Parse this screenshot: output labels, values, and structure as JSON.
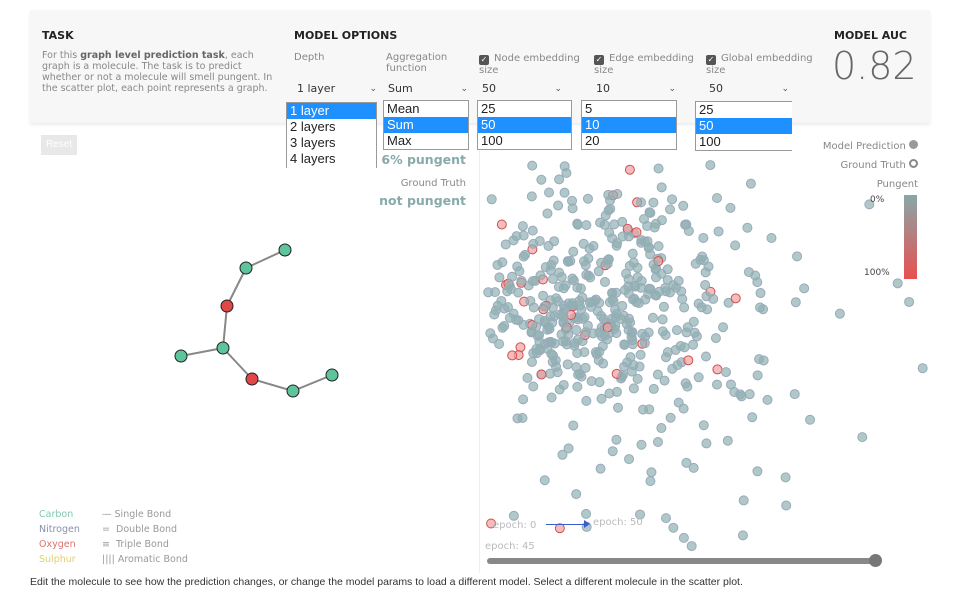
{
  "task": {
    "title": "TASK",
    "text_pre": "For this ",
    "text_bold": "graph level prediction task",
    "text_post": ", each graph is a molecule. The task is to predict whether or not a molecule will smell pungent. In the scatter plot, each point represents a graph."
  },
  "model_options": {
    "title": "MODEL OPTIONS",
    "depth": {
      "label": "Depth",
      "value": "1 layer",
      "options": [
        "1 layer",
        "2 layers",
        "3 layers",
        "4 layers"
      ]
    },
    "aggregation": {
      "label": "Aggregation function",
      "value": "Sum",
      "options": [
        "Mean",
        "Sum",
        "Max"
      ]
    },
    "node_embedding": {
      "label": "Node embedding",
      "label2": "size",
      "checked": true,
      "value": "50",
      "options": [
        "25",
        "50",
        "100"
      ]
    },
    "edge_embedding": {
      "label": "Edge embedding",
      "label2": "size",
      "checked": true,
      "value": "10",
      "options": [
        "5",
        "10",
        "20"
      ]
    },
    "global_embedding": {
      "label": "Global embedding",
      "label2": "size",
      "checked": true,
      "value": "50",
      "options": [
        "25",
        "50",
        "100"
      ]
    }
  },
  "auc": {
    "title": "MODEL AUC",
    "value": "0.82"
  },
  "molecule": {
    "reset": "Reset",
    "prediction": "6% pungent",
    "ground_truth_label": "Ground Truth",
    "ground_truth": "not pungent",
    "legend_atoms": [
      {
        "name": "Carbon",
        "color": "#7fc9b0"
      },
      {
        "name": "Nitrogen",
        "color": "#8890b0"
      },
      {
        "name": "Oxygen",
        "color": "#e07070"
      },
      {
        "name": "Sulphur",
        "color": "#e0d070"
      }
    ],
    "legend_bonds": [
      "Single Bond",
      "Double Bond",
      "Triple Bond",
      "Aromatic Bond"
    ]
  },
  "scatter": {
    "legend_prediction": "Model Prediction",
    "legend_truth": "Ground Truth",
    "colorbar_title": "Pungent",
    "colorbar_min": "0%",
    "colorbar_max": "100%",
    "epoch_start": "epoch: 0",
    "epoch_end": "epoch: 50",
    "epoch_current": "epoch: 45",
    "epoch_progress": 0.9
  },
  "footer": "Edit the molecule to see how the prediction changes, or change the model params to load a different model. Select a different molecule in the scatter plot."
}
